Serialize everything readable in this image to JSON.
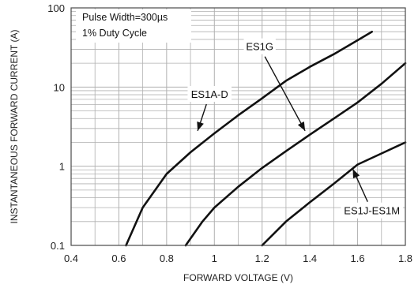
{
  "chart_data": {
    "type": "line",
    "title": "",
    "xlabel": "FORWARD VOLTAGE (V)",
    "ylabel": "INSTANTANEOUS FORWARD CURRENT (A)",
    "x_scale": "linear",
    "y_scale": "log",
    "xlim": [
      0.4,
      1.8
    ],
    "ylim": [
      0.1,
      100
    ],
    "x_ticks": [
      0.4,
      0.6,
      0.8,
      1.0,
      1.2,
      1.4,
      1.6,
      1.8
    ],
    "x_tick_labels": [
      "0.4",
      "0.6",
      "0.8",
      "1",
      "1.2",
      "1.4",
      "1.6",
      "1.8"
    ],
    "y_ticks": [
      0.1,
      1,
      10,
      100
    ],
    "y_tick_labels": [
      "0.1",
      "1",
      "10",
      "100"
    ],
    "grid": true,
    "annotation_lines": [
      "Pulse Width=300µs",
      "1% Duty Cycle"
    ],
    "series": [
      {
        "name": "ES1A-D",
        "label_at": [
          0.98,
          8
        ],
        "arrow_to": [
          0.93,
          2.8
        ],
        "points": [
          [
            0.63,
            0.1
          ],
          [
            0.7,
            0.3
          ],
          [
            0.8,
            0.8
          ],
          [
            0.9,
            1.5
          ],
          [
            1.0,
            2.6
          ],
          [
            1.1,
            4.4
          ],
          [
            1.2,
            7.2
          ],
          [
            1.3,
            12
          ],
          [
            1.4,
            18
          ],
          [
            1.5,
            26
          ],
          [
            1.6,
            39
          ],
          [
            1.66,
            50
          ]
        ]
      },
      {
        "name": "ES1G",
        "label_at": [
          1.19,
          32
        ],
        "arrow_to": [
          1.38,
          2.8
        ],
        "points": [
          [
            0.88,
            0.1
          ],
          [
            0.95,
            0.2
          ],
          [
            1.0,
            0.3
          ],
          [
            1.1,
            0.55
          ],
          [
            1.2,
            0.95
          ],
          [
            1.3,
            1.55
          ],
          [
            1.4,
            2.5
          ],
          [
            1.5,
            4.0
          ],
          [
            1.6,
            6.4
          ],
          [
            1.7,
            11
          ],
          [
            1.8,
            20
          ]
        ]
      },
      {
        "name": "ES1J-ES1M",
        "label_at": [
          1.66,
          0.27
        ],
        "arrow_to": [
          1.58,
          0.92
        ],
        "points": [
          [
            1.2,
            0.1
          ],
          [
            1.3,
            0.2
          ],
          [
            1.4,
            0.35
          ],
          [
            1.5,
            0.6
          ],
          [
            1.6,
            1.05
          ],
          [
            1.7,
            1.45
          ],
          [
            1.8,
            2.0
          ]
        ]
      }
    ],
    "colors": {
      "curve": "#111111",
      "grid": "#b0b0b0",
      "axis": "#4a4a4a",
      "background": "#ffffff"
    }
  }
}
